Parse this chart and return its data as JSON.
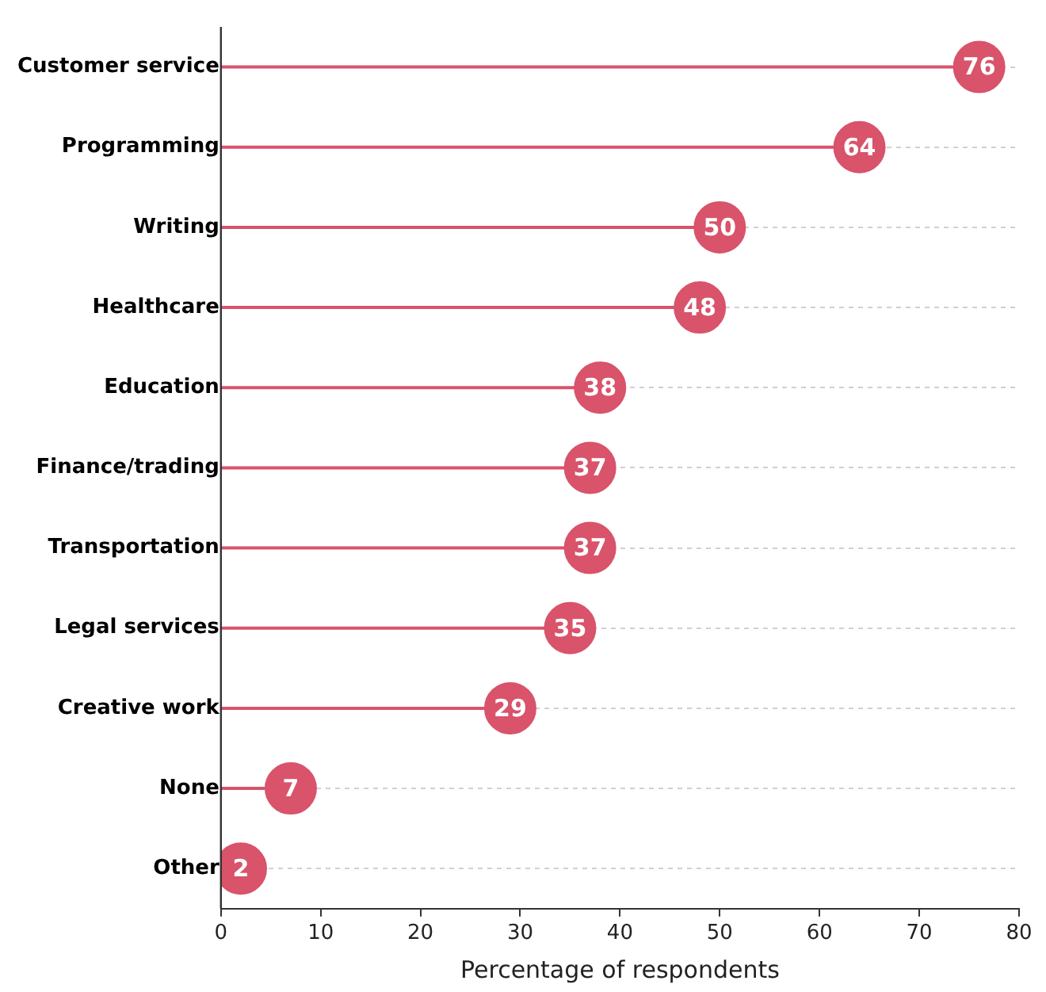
{
  "chart_data": {
    "type": "lollipop",
    "orientation": "horizontal",
    "xlabel": "Percentage of respondents",
    "categories": [
      "Customer service",
      "Programming",
      "Writing",
      "Healthcare",
      "Education",
      "Finance/trading",
      "Transportation",
      "Legal services",
      "Creative work",
      "None",
      "Other"
    ],
    "values": [
      76,
      64,
      50,
      48,
      38,
      37,
      37,
      35,
      29,
      7,
      2
    ],
    "color": "#d9536b",
    "xlim": [
      0,
      80
    ],
    "xticks": [
      0,
      10,
      20,
      30,
      40,
      50,
      60,
      70,
      80
    ],
    "grid": "y",
    "data_labels": true,
    "legend": false,
    "marker": "circle"
  }
}
